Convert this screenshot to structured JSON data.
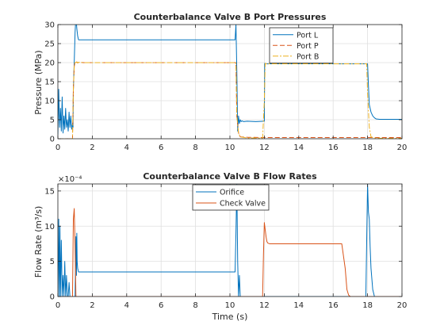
{
  "chart_data": [
    {
      "type": "line",
      "title": "Counterbalance Valve B Port Pressures",
      "xlabel": "",
      "ylabel": "Pressure (MPa)",
      "xlim": [
        0,
        20
      ],
      "ylim": [
        0,
        30
      ],
      "xticks": [
        0,
        2,
        4,
        6,
        8,
        10,
        12,
        14,
        16,
        18,
        20
      ],
      "yticks": [
        0,
        5,
        10,
        15,
        20,
        25,
        30
      ],
      "grid": true,
      "legend": "top-right",
      "series": [
        {
          "name": "Port L",
          "color": "#0072BD",
          "dash": "",
          "x": [
            0,
            0.05,
            0.1,
            0.15,
            0.2,
            0.25,
            0.3,
            0.35,
            0.4,
            0.45,
            0.5,
            0.55,
            0.6,
            0.65,
            0.7,
            0.75,
            0.8,
            0.85,
            0.88,
            0.9,
            0.95,
            1.0,
            1.05,
            1.1,
            1.15,
            1.2,
            1.3,
            1.4,
            1.5,
            2,
            4,
            6,
            8,
            10,
            10.3,
            10.35,
            10.4,
            10.45,
            10.5,
            10.55,
            10.6,
            10.65,
            10.7,
            10.8,
            11,
            11.5,
            12,
            12.02,
            12.1,
            12.5,
            14,
            16,
            17.9,
            18.0,
            18.05,
            18.1,
            18.2,
            18.3,
            18.4,
            18.5,
            18.7,
            19,
            20
          ],
          "y": [
            1,
            13,
            3,
            8,
            2,
            11,
            1.5,
            6,
            2.5,
            8,
            3,
            5,
            2,
            7,
            3,
            6,
            2.5,
            4,
            3,
            13,
            20,
            28,
            32,
            29,
            27,
            26,
            26,
            26,
            26,
            26,
            26,
            26,
            26,
            26,
            26,
            30,
            18,
            2,
            6,
            4,
            5,
            4.5,
            4.7,
            4.5,
            4.6,
            4.5,
            4.6,
            19.8,
            19.7,
            19.7,
            19.7,
            19.7,
            19.7,
            19.7,
            14,
            9,
            7,
            6,
            5.5,
            5.2,
            5.1,
            5.1,
            5.1
          ]
        },
        {
          "name": "Port P",
          "color": "#D95319",
          "dash": "6,3",
          "x": [
            0,
            0.85,
            0.9,
            0.95,
            1.0,
            1.05,
            1.1,
            1.15,
            1.2,
            1.5,
            2,
            4,
            6,
            8,
            10,
            10.3,
            10.35,
            10.4,
            10.5,
            10.6,
            11,
            12,
            14,
            16,
            18,
            20
          ],
          "y": [
            0,
            0,
            13,
            19,
            20.3,
            20.0,
            20.2,
            19.9,
            20.1,
            20.0,
            20.0,
            20.0,
            20.0,
            20.0,
            20.0,
            20.0,
            20.0,
            6,
            1.5,
            0.5,
            0.4,
            0.3,
            0.3,
            0.3,
            0.3,
            0.3
          ]
        },
        {
          "name": "Port B",
          "color": "#EDB120",
          "dash": "7,2,2,2",
          "x": [
            0,
            0.85,
            0.9,
            0.95,
            1.0,
            1.05,
            1.1,
            1.15,
            1.2,
            1.5,
            2,
            4,
            6,
            8,
            10,
            10.3,
            10.35,
            10.4,
            10.5,
            10.6,
            11,
            11.9,
            12.0,
            12.05,
            12.1,
            12.5,
            14,
            16,
            17.95,
            18.0,
            18.1,
            18.2,
            18.4,
            19,
            20
          ],
          "y": [
            0,
            0,
            13,
            19,
            20.3,
            20.0,
            20.2,
            19.9,
            20.1,
            20.0,
            20.0,
            20.0,
            20.0,
            20.0,
            20.0,
            20.0,
            20.0,
            6,
            1.5,
            0.5,
            0.2,
            0.2,
            10,
            19.8,
            19.7,
            19.7,
            19.7,
            19.7,
            19.7,
            12,
            3,
            0.5,
            0.2,
            0.1,
            0.1
          ]
        }
      ]
    },
    {
      "type": "line",
      "title": "Counterbalance Valve B Flow Rates",
      "exponent_label": "×10⁻⁴",
      "xlabel": "Time (s)",
      "ylabel": "Flow Rate (m³/s)",
      "xlim": [
        0,
        20
      ],
      "ylim": [
        0,
        16
      ],
      "xticks": [
        0,
        2,
        4,
        6,
        8,
        10,
        12,
        14,
        16,
        18,
        20
      ],
      "yticks": [
        0,
        5,
        10,
        15
      ],
      "grid": true,
      "legend": "top-center",
      "series": [
        {
          "name": "Orifice",
          "color": "#0072BD",
          "dash": "",
          "x": [
            0,
            0.05,
            0.08,
            0.12,
            0.15,
            0.2,
            0.25,
            0.3,
            0.35,
            0.4,
            0.45,
            0.5,
            0.55,
            0.6,
            0.65,
            0.7,
            0.75,
            0.8,
            0.85,
            1.0,
            1.05,
            1.08,
            1.1,
            1.12,
            1.15,
            1.2,
            1.3,
            1.5,
            2,
            4,
            6,
            8,
            10,
            10.3,
            10.35,
            10.4,
            10.45,
            10.5,
            10.55,
            10.6,
            10.7,
            11,
            12,
            14,
            16,
            17.9,
            17.95,
            18.0,
            18.05,
            18.1,
            18.15,
            18.2,
            18.3,
            18.4,
            18.6,
            19,
            20
          ],
          "y": [
            0,
            11,
            0,
            10,
            0,
            8,
            0,
            3,
            0,
            5,
            0,
            3,
            0,
            0,
            2,
            0,
            0,
            0,
            0,
            0,
            8.5,
            3,
            9,
            5,
            4,
            3.5,
            3.5,
            3.5,
            3.5,
            3.5,
            3.5,
            3.5,
            3.5,
            3.5,
            9,
            16,
            5,
            0,
            3,
            0,
            0,
            0,
            0,
            0,
            0,
            0,
            8,
            16,
            12,
            11,
            7,
            4,
            1,
            0,
            0,
            0,
            0
          ]
        },
        {
          "name": "Check Valve",
          "color": "#D95319",
          "dash": "",
          "x": [
            0,
            0.85,
            0.9,
            0.95,
            1.0,
            1.05,
            1.1,
            1.2,
            2,
            4,
            6,
            8,
            10,
            11,
            11.9,
            11.95,
            12.0,
            12.05,
            12.1,
            12.15,
            12.2,
            12.3,
            12.5,
            14,
            16,
            16.5,
            16.7,
            16.8,
            16.9,
            17.0,
            18,
            20
          ],
          "y": [
            0,
            0,
            11,
            12.5,
            7,
            0,
            0,
            0,
            0,
            0,
            0,
            0,
            0,
            0,
            0,
            6,
            10.5,
            9.5,
            8.5,
            7.8,
            7.6,
            7.5,
            7.5,
            7.5,
            7.5,
            7.5,
            4,
            1,
            0.2,
            0,
            0,
            0
          ]
        }
      ]
    }
  ]
}
